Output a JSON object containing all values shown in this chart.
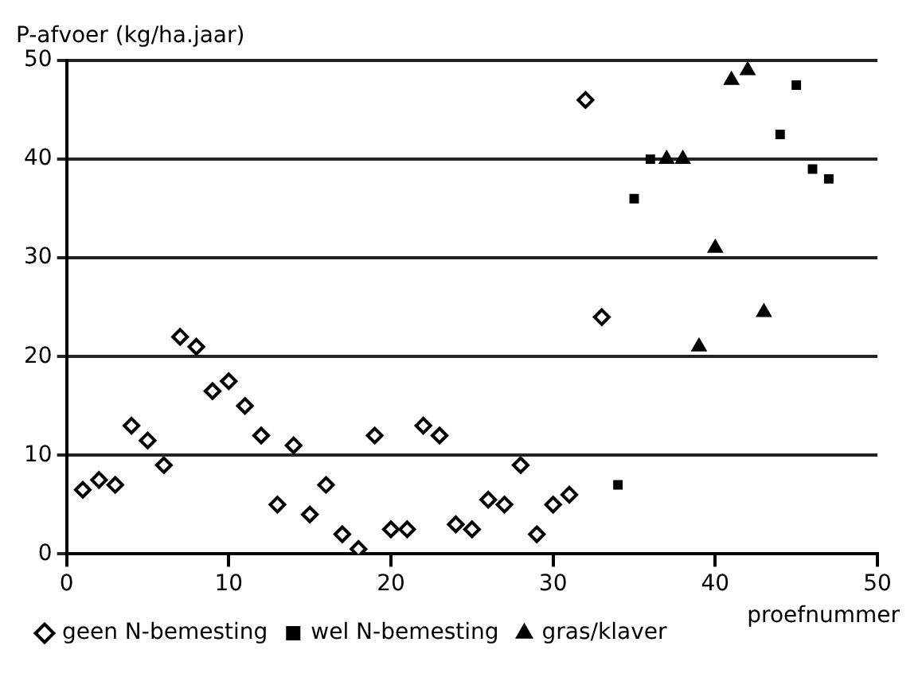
{
  "chart_data": {
    "type": "scatter",
    "xlabel": "proefnummer",
    "ylabel": "P-afvoer (kg/ha.jaar)",
    "xlim": [
      0,
      50
    ],
    "xticks": [
      0,
      10,
      20,
      30,
      40,
      50
    ],
    "ylim": [
      0,
      50
    ],
    "yticks": [
      0,
      10,
      20,
      30,
      40,
      50
    ],
    "grid": "y",
    "legend": "bottom",
    "series": [
      {
        "name": "geen N-bemesting",
        "color": "#000000",
        "marker": "diamond",
        "x": [
          1,
          2,
          3,
          4,
          5,
          6,
          7,
          8,
          9,
          10,
          11,
          12,
          13,
          14,
          15,
          16,
          17,
          18,
          19,
          20,
          21,
          22,
          23,
          24,
          25,
          26,
          27,
          28,
          29,
          30,
          31,
          32,
          33
        ],
        "values": [
          6.5,
          7.5,
          7,
          13,
          11.5,
          9,
          22,
          21,
          16.5,
          17.5,
          15,
          12,
          5,
          11,
          4,
          7,
          2,
          0.5,
          12,
          2.5,
          2.5,
          13,
          12,
          3,
          2.5,
          5.5,
          5,
          9,
          2,
          5,
          6,
          46,
          24
        ]
      },
      {
        "name": "wel N-bemesting",
        "color": "#000000",
        "marker": "square",
        "x": [
          34,
          35,
          36,
          44,
          45,
          46,
          47
        ],
        "values": [
          7,
          36,
          40,
          42.5,
          47.5,
          39,
          38
        ]
      },
      {
        "name": "gras/klaver",
        "color": "#000000",
        "marker": "triangle",
        "x": [
          37,
          38,
          39,
          40,
          41,
          42,
          43
        ],
        "values": [
          40,
          40,
          21,
          31,
          48,
          49,
          24.5
        ]
      }
    ]
  }
}
